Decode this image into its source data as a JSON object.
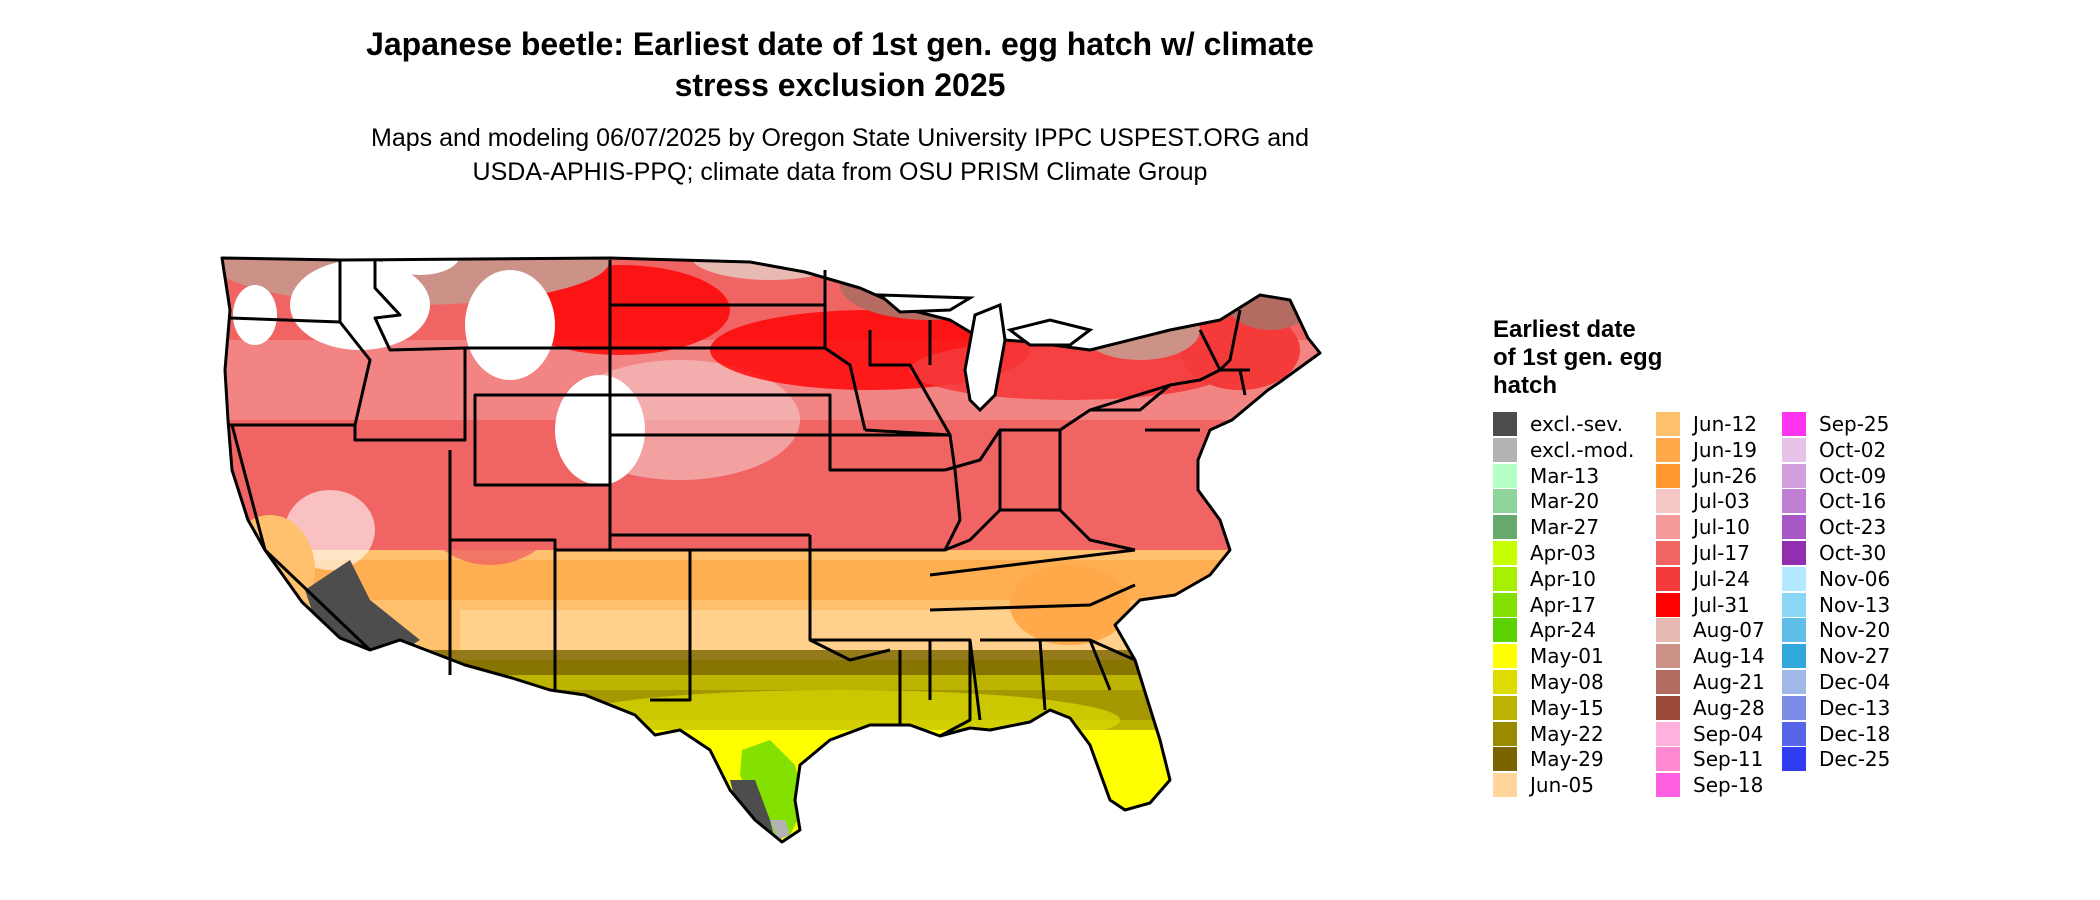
{
  "title_line1": "Japanese beetle: Earliest date of 1st gen. egg hatch w/ climate",
  "title_line2": "stress exclusion 2025",
  "subtitle_line1": "Maps and modeling 06/07/2025 by Oregon State University IPPC USPEST.ORG and",
  "subtitle_line2": "USDA-APHIS-PPQ; climate data from OSU PRISM Climate Group",
  "legend": {
    "title_lines": [
      "Earliest date",
      "of 1st gen. egg",
      "hatch"
    ],
    "items": [
      {
        "label": "excl.-sev.",
        "color": "#4d4d4d"
      },
      {
        "label": "excl.-mod.",
        "color": "#b3b3b3"
      },
      {
        "label": "Mar-13",
        "color": "#b3ffc6"
      },
      {
        "label": "Mar-20",
        "color": "#8fd49b"
      },
      {
        "label": "Mar-27",
        "color": "#66a86e"
      },
      {
        "label": "Apr-03",
        "color": "#c8ff00"
      },
      {
        "label": "Apr-10",
        "color": "#a6f000"
      },
      {
        "label": "Apr-17",
        "color": "#84e000"
      },
      {
        "label": "Apr-24",
        "color": "#5cd200"
      },
      {
        "label": "May-01",
        "color": "#ffff00"
      },
      {
        "label": "May-08",
        "color": "#dcdc00"
      },
      {
        "label": "May-15",
        "color": "#bcb400"
      },
      {
        "label": "May-22",
        "color": "#9a8a00"
      },
      {
        "label": "May-29",
        "color": "#7a6400"
      },
      {
        "label": "Jun-05",
        "color": "#ffd79a"
      },
      {
        "label": "Jun-12",
        "color": "#ffc16e"
      },
      {
        "label": "Jun-19",
        "color": "#ffa94a"
      },
      {
        "label": "Jun-26",
        "color": "#ff962e"
      },
      {
        "label": "Jul-03",
        "color": "#f5c8c8"
      },
      {
        "label": "Jul-10",
        "color": "#f59a9a"
      },
      {
        "label": "Jul-17",
        "color": "#f06464"
      },
      {
        "label": "Jul-24",
        "color": "#f53a3a"
      },
      {
        "label": "Jul-31",
        "color": "#ff0000"
      },
      {
        "label": "Aug-07",
        "color": "#e6b9b1"
      },
      {
        "label": "Aug-14",
        "color": "#cc9288"
      },
      {
        "label": "Aug-21",
        "color": "#b46c62"
      },
      {
        "label": "Aug-28",
        "color": "#9c4a3a"
      },
      {
        "label": "Sep-04",
        "color": "#ffb3dc"
      },
      {
        "label": "Sep-11",
        "color": "#ff8ad2"
      },
      {
        "label": "Sep-18",
        "color": "#ff5fe0"
      },
      {
        "label": "Sep-25",
        "color": "#ff33f0"
      },
      {
        "label": "Oct-02",
        "color": "#e6c3e6"
      },
      {
        "label": "Oct-09",
        "color": "#d2a0dc"
      },
      {
        "label": "Oct-16",
        "color": "#bf7fd2"
      },
      {
        "label": "Oct-23",
        "color": "#a857c6"
      },
      {
        "label": "Oct-30",
        "color": "#9030b0"
      },
      {
        "label": "Nov-06",
        "color": "#b3eaff"
      },
      {
        "label": "Nov-13",
        "color": "#8ad6f5"
      },
      {
        "label": "Nov-20",
        "color": "#5fbfe8"
      },
      {
        "label": "Nov-27",
        "color": "#30a8dc"
      },
      {
        "label": "Dec-04",
        "color": "#a0b8ea"
      },
      {
        "label": "Dec-13",
        "color": "#7a8ce6"
      },
      {
        "label": "Dec-18",
        "color": "#5766e6"
      },
      {
        "label": "Dec-25",
        "color": "#2f3cf0"
      }
    ]
  }
}
